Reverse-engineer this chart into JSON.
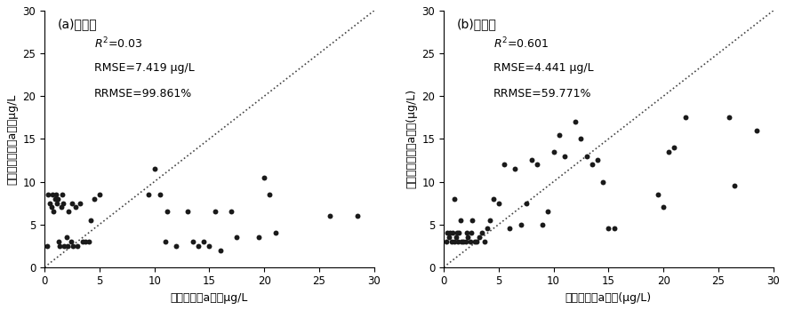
{
  "panel_a": {
    "title": "(a)未分类",
    "xlabel": "实测叶绿素a浓度μg/L",
    "ylabel": "影像反演叶绿素a浓度μg/L",
    "r2_label": "$\\mathit{R}^2$=0.03",
    "rmse_label": "RMSE=7.419 μg/L",
    "rrmse_label": "RRMSE=99.861%",
    "xlim": [
      0,
      30
    ],
    "ylim": [
      0,
      30
    ],
    "xticks": [
      0,
      5,
      10,
      15,
      20,
      25,
      30
    ],
    "yticks": [
      0,
      5,
      10,
      15,
      20,
      25,
      30
    ],
    "scatter_x": [
      0.2,
      0.3,
      0.5,
      0.6,
      0.7,
      0.8,
      1.0,
      1.05,
      1.1,
      1.2,
      1.3,
      1.4,
      1.5,
      1.6,
      1.7,
      1.8,
      2.0,
      2.1,
      2.2,
      2.4,
      2.5,
      2.6,
      2.8,
      3.0,
      3.2,
      3.5,
      3.7,
      4.0,
      4.2,
      4.5,
      5.0,
      9.5,
      10.0,
      10.5,
      11.0,
      11.2,
      12.0,
      13.0,
      13.5,
      14.0,
      14.5,
      15.0,
      15.5,
      16.0,
      17.0,
      17.5,
      19.5,
      20.0,
      20.5,
      21.0,
      26.0,
      28.5
    ],
    "scatter_y": [
      2.5,
      8.5,
      7.5,
      7.0,
      8.5,
      6.5,
      8.0,
      8.5,
      7.5,
      8.0,
      3.0,
      2.5,
      7.0,
      8.5,
      7.5,
      2.5,
      3.5,
      2.5,
      6.5,
      3.0,
      7.5,
      2.5,
      7.0,
      2.5,
      7.5,
      3.0,
      3.0,
      3.0,
      5.5,
      8.0,
      8.5,
      8.5,
      11.5,
      8.5,
      3.0,
      6.5,
      2.5,
      6.5,
      3.0,
      2.5,
      3.0,
      2.5,
      6.5,
      2.0,
      6.5,
      3.5,
      3.5,
      10.5,
      8.5,
      4.0,
      6.0,
      6.0
    ]
  },
  "panel_b": {
    "title": "(b)分类后",
    "xlabel": "实测叶绿素a浓度(μg/L)",
    "ylabel": "影像反演叶绿素a浓度(μg/L)",
    "r2_label": "$\\mathit{R}^2$=0.601",
    "rmse_label": "RMSE=4.441 μg/L",
    "rrmse_label": "RRMSE=59.771%",
    "xlim": [
      0,
      30
    ],
    "ylim": [
      0,
      30
    ],
    "xticks": [
      0,
      5,
      10,
      15,
      20,
      25,
      30
    ],
    "yticks": [
      0,
      5,
      10,
      15,
      20,
      25,
      30
    ],
    "scatter_x": [
      0.2,
      0.3,
      0.5,
      0.6,
      0.7,
      0.8,
      1.0,
      1.0,
      1.1,
      1.2,
      1.3,
      1.4,
      1.5,
      1.6,
      1.8,
      2.0,
      2.1,
      2.2,
      2.4,
      2.5,
      2.6,
      2.8,
      3.0,
      3.2,
      3.5,
      3.7,
      4.0,
      4.2,
      4.5,
      5.0,
      5.5,
      6.0,
      6.5,
      7.0,
      7.5,
      8.0,
      8.5,
      9.0,
      9.5,
      10.0,
      10.5,
      11.0,
      12.0,
      12.5,
      13.0,
      13.5,
      14.0,
      14.5,
      15.0,
      15.5,
      19.5,
      20.0,
      20.5,
      21.0,
      22.0,
      26.0,
      26.5,
      28.5
    ],
    "scatter_y": [
      3.0,
      4.0,
      3.5,
      4.0,
      3.0,
      4.0,
      8.0,
      3.0,
      3.5,
      4.0,
      3.0,
      4.0,
      5.5,
      3.0,
      3.0,
      3.0,
      4.0,
      3.5,
      3.0,
      4.0,
      5.5,
      3.0,
      3.0,
      3.5,
      4.0,
      3.0,
      4.5,
      5.5,
      8.0,
      7.5,
      12.0,
      4.5,
      11.5,
      5.0,
      7.5,
      12.5,
      12.0,
      5.0,
      6.5,
      13.5,
      15.5,
      13.0,
      17.0,
      15.0,
      13.0,
      12.0,
      12.5,
      10.0,
      4.5,
      4.5,
      8.5,
      7.0,
      13.5,
      14.0,
      17.5,
      17.5,
      9.5,
      16.0
    ]
  },
  "dot_color": "#1a1a1a",
  "dot_size": 18,
  "line_color": "#444444",
  "background_color": "#ffffff"
}
